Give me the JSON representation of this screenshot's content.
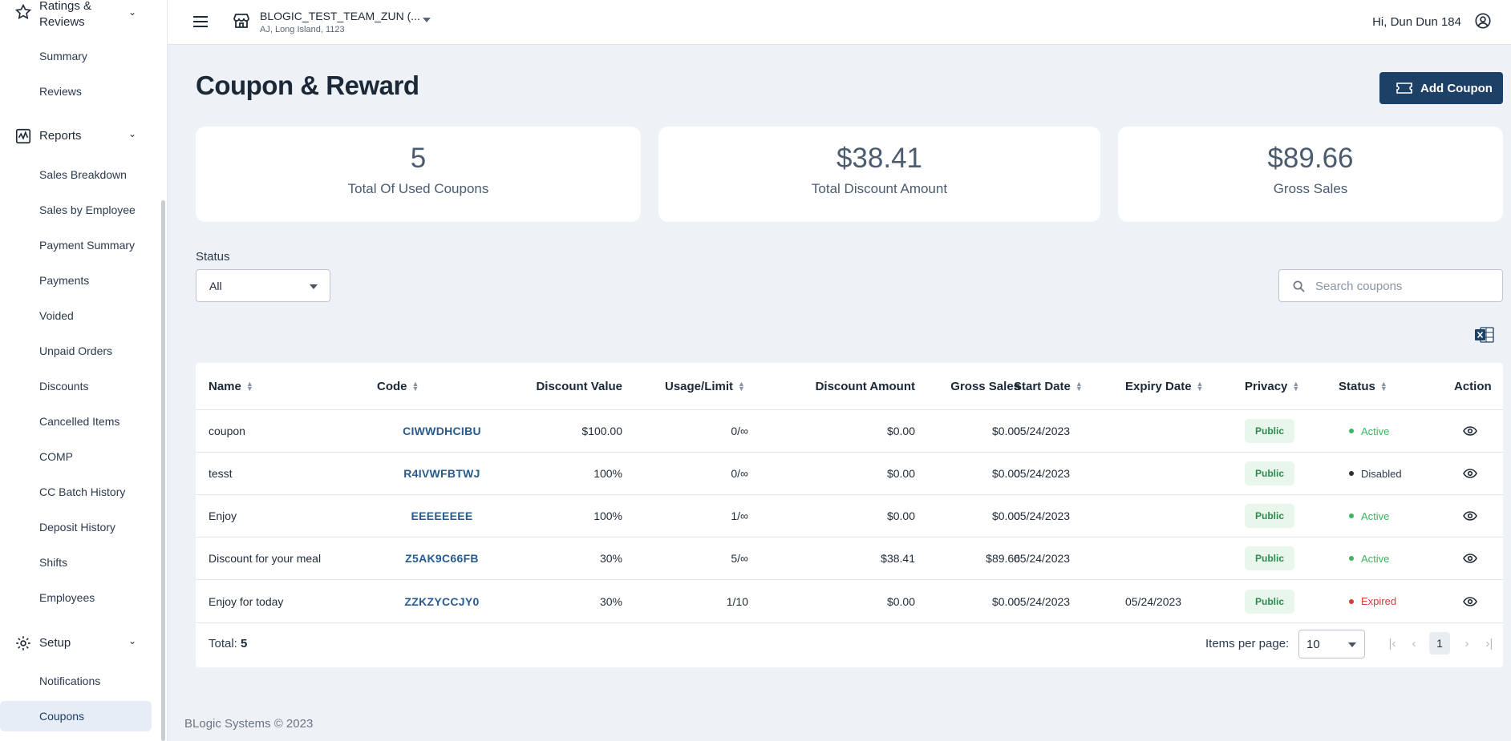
{
  "sidebar": {
    "ratings_label": "Ratings & Reviews",
    "ratings_items": [
      "Summary",
      "Reviews"
    ],
    "reports_label": "Reports",
    "reports_items": [
      "Sales Breakdown",
      "Sales by Employee",
      "Payment Summary",
      "Payments",
      "Voided",
      "Unpaid Orders",
      "Discounts",
      "Cancelled Items",
      "COMP",
      "CC Batch History",
      "Deposit History",
      "Shifts",
      "Employees"
    ],
    "setup_label": "Setup",
    "setup_items": [
      "Notifications",
      "Coupons"
    ],
    "active_item": "Coupons"
  },
  "topbar": {
    "store_name": "BLOGIC_TEST_TEAM_ZUN (...",
    "store_address": "AJ, Long Island, 1123",
    "greeting": "Hi, Dun Dun 184"
  },
  "main": {
    "title": "Coupon & Reward",
    "add_button": "Add Coupon",
    "stats": [
      {
        "value": "5",
        "label": "Total Of Used Coupons"
      },
      {
        "value": "$38.41",
        "label": "Total Discount Amount"
      },
      {
        "value": "$89.66",
        "label": "Gross Sales"
      }
    ],
    "status_filter": {
      "label": "Status",
      "value": "All"
    },
    "search": {
      "placeholder": "Search coupons"
    },
    "table": {
      "columns": [
        "Name",
        "Code",
        "Discount Value",
        "Usage/Limit",
        "Discount Amount",
        "Gross Sales",
        "Start Date",
        "Expiry Date",
        "Privacy",
        "Status",
        "Action"
      ],
      "rows": [
        {
          "name": "coupon",
          "code": "CIWWDHCIBU",
          "discount_value": "$100.00",
          "usage": "0/∞",
          "discount_amount": "$0.00",
          "gross_sales": "$0.00",
          "start": "05/24/2023",
          "expiry": "",
          "privacy": "Public",
          "status": "Active",
          "status_color": "#3bb55e"
        },
        {
          "name": "tesst",
          "code": "R4IVWFBTWJ",
          "discount_value": "100%",
          "usage": "0/∞",
          "discount_amount": "$0.00",
          "gross_sales": "$0.00",
          "start": "05/24/2023",
          "expiry": "",
          "privacy": "Public",
          "status": "Disabled",
          "status_color": "#2b2f36"
        },
        {
          "name": "Enjoy",
          "code": "EEEEEEEE",
          "discount_value": "100%",
          "usage": "1/∞",
          "discount_amount": "$0.00",
          "gross_sales": "$0.00",
          "start": "05/24/2023",
          "expiry": "",
          "privacy": "Public",
          "status": "Active",
          "status_color": "#3bb55e"
        },
        {
          "name": "Discount for your meal",
          "code": "Z5AK9C66FB",
          "discount_value": "30%",
          "usage": "5/∞",
          "discount_amount": "$38.41",
          "gross_sales": "$89.66",
          "start": "05/24/2023",
          "expiry": "",
          "privacy": "Public",
          "status": "Active",
          "status_color": "#3bb55e"
        },
        {
          "name": "Enjoy for today",
          "code": "ZZKZYCCJY0",
          "discount_value": "30%",
          "usage": "1/10",
          "discount_amount": "$0.00",
          "gross_sales": "$0.00",
          "start": "05/24/2023",
          "expiry": "05/24/2023",
          "privacy": "Public",
          "status": "Expired",
          "status_color": "#d93a3a"
        }
      ]
    },
    "total_label": "Total:",
    "total_value": "5",
    "items_per_page_label": "Items per page:",
    "items_per_page_value": "10",
    "current_page": "1"
  },
  "footer": "BLogic Systems © 2023"
}
